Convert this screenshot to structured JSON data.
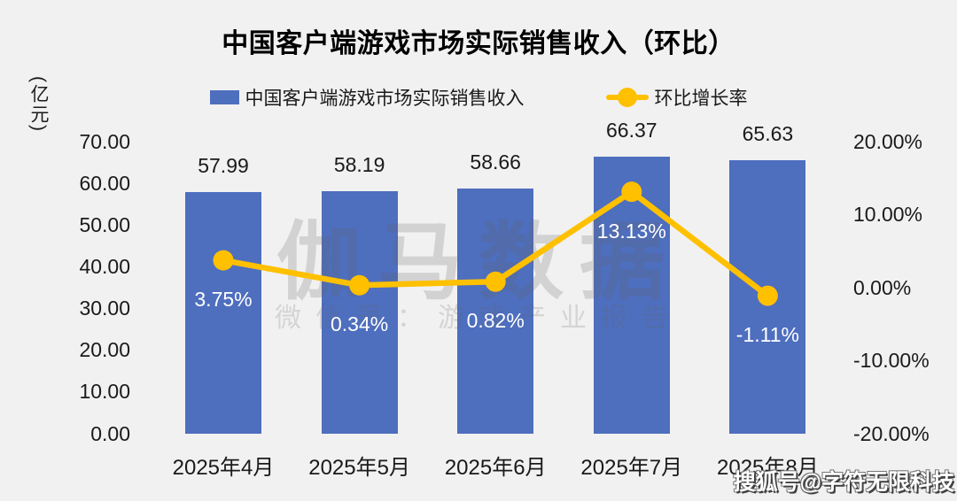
{
  "chart_data": {
    "type": "combo-bar-line",
    "title": "中国客户端游戏市场实际销售收入（环比）",
    "categories": [
      "2025年4月",
      "2025年5月",
      "2025年6月",
      "2025年7月",
      "2025年8月"
    ],
    "series": [
      {
        "name": "中国客户端游戏市场实际销售收入",
        "type": "bar",
        "axis": "left",
        "unit": "亿元",
        "color": "#4E6EBE",
        "values": [
          57.99,
          58.19,
          58.66,
          66.37,
          65.63
        ],
        "labels": [
          "57.99",
          "58.19",
          "58.66",
          "66.37",
          "65.63"
        ]
      },
      {
        "name": "环比增长率",
        "type": "line",
        "axis": "right",
        "color": "#FFC000",
        "values": [
          3.75,
          0.34,
          0.82,
          13.13,
          -1.11
        ],
        "labels": [
          "3.75%",
          "0.34%",
          "0.82%",
          "13.13%",
          "-1.11%"
        ]
      }
    ],
    "left_axis": {
      "unit_label": "(亿元)",
      "min": 0,
      "max": 70,
      "ticks": [
        "70.00",
        "60.00",
        "50.00",
        "40.00",
        "30.00",
        "20.00",
        "10.00",
        "0.00"
      ],
      "tick_values": [
        70,
        60,
        50,
        40,
        30,
        20,
        10,
        0
      ]
    },
    "right_axis": {
      "min": -20,
      "max": 20,
      "ticks": [
        "20.00%",
        "10.00%",
        "0.00%",
        "-10.00%",
        "-20.00%"
      ],
      "tick_values": [
        20,
        10,
        0,
        -10,
        -20
      ]
    },
    "legend_position": "top",
    "grid": false
  },
  "watermarks": {
    "main": "伽马数据",
    "sub": "微信号：游戏产业报告",
    "bottom_right": "搜狐号@字符无限科技"
  },
  "colors": {
    "background": "#F1F1F1",
    "bar": "#4E6EBE",
    "line": "#FFC000",
    "bar_inner_label_text": "#FFFFFF",
    "axis_text": "#1A1A1A",
    "title_text": "#000000",
    "watermark": "rgba(100,100,100,0.22)"
  }
}
